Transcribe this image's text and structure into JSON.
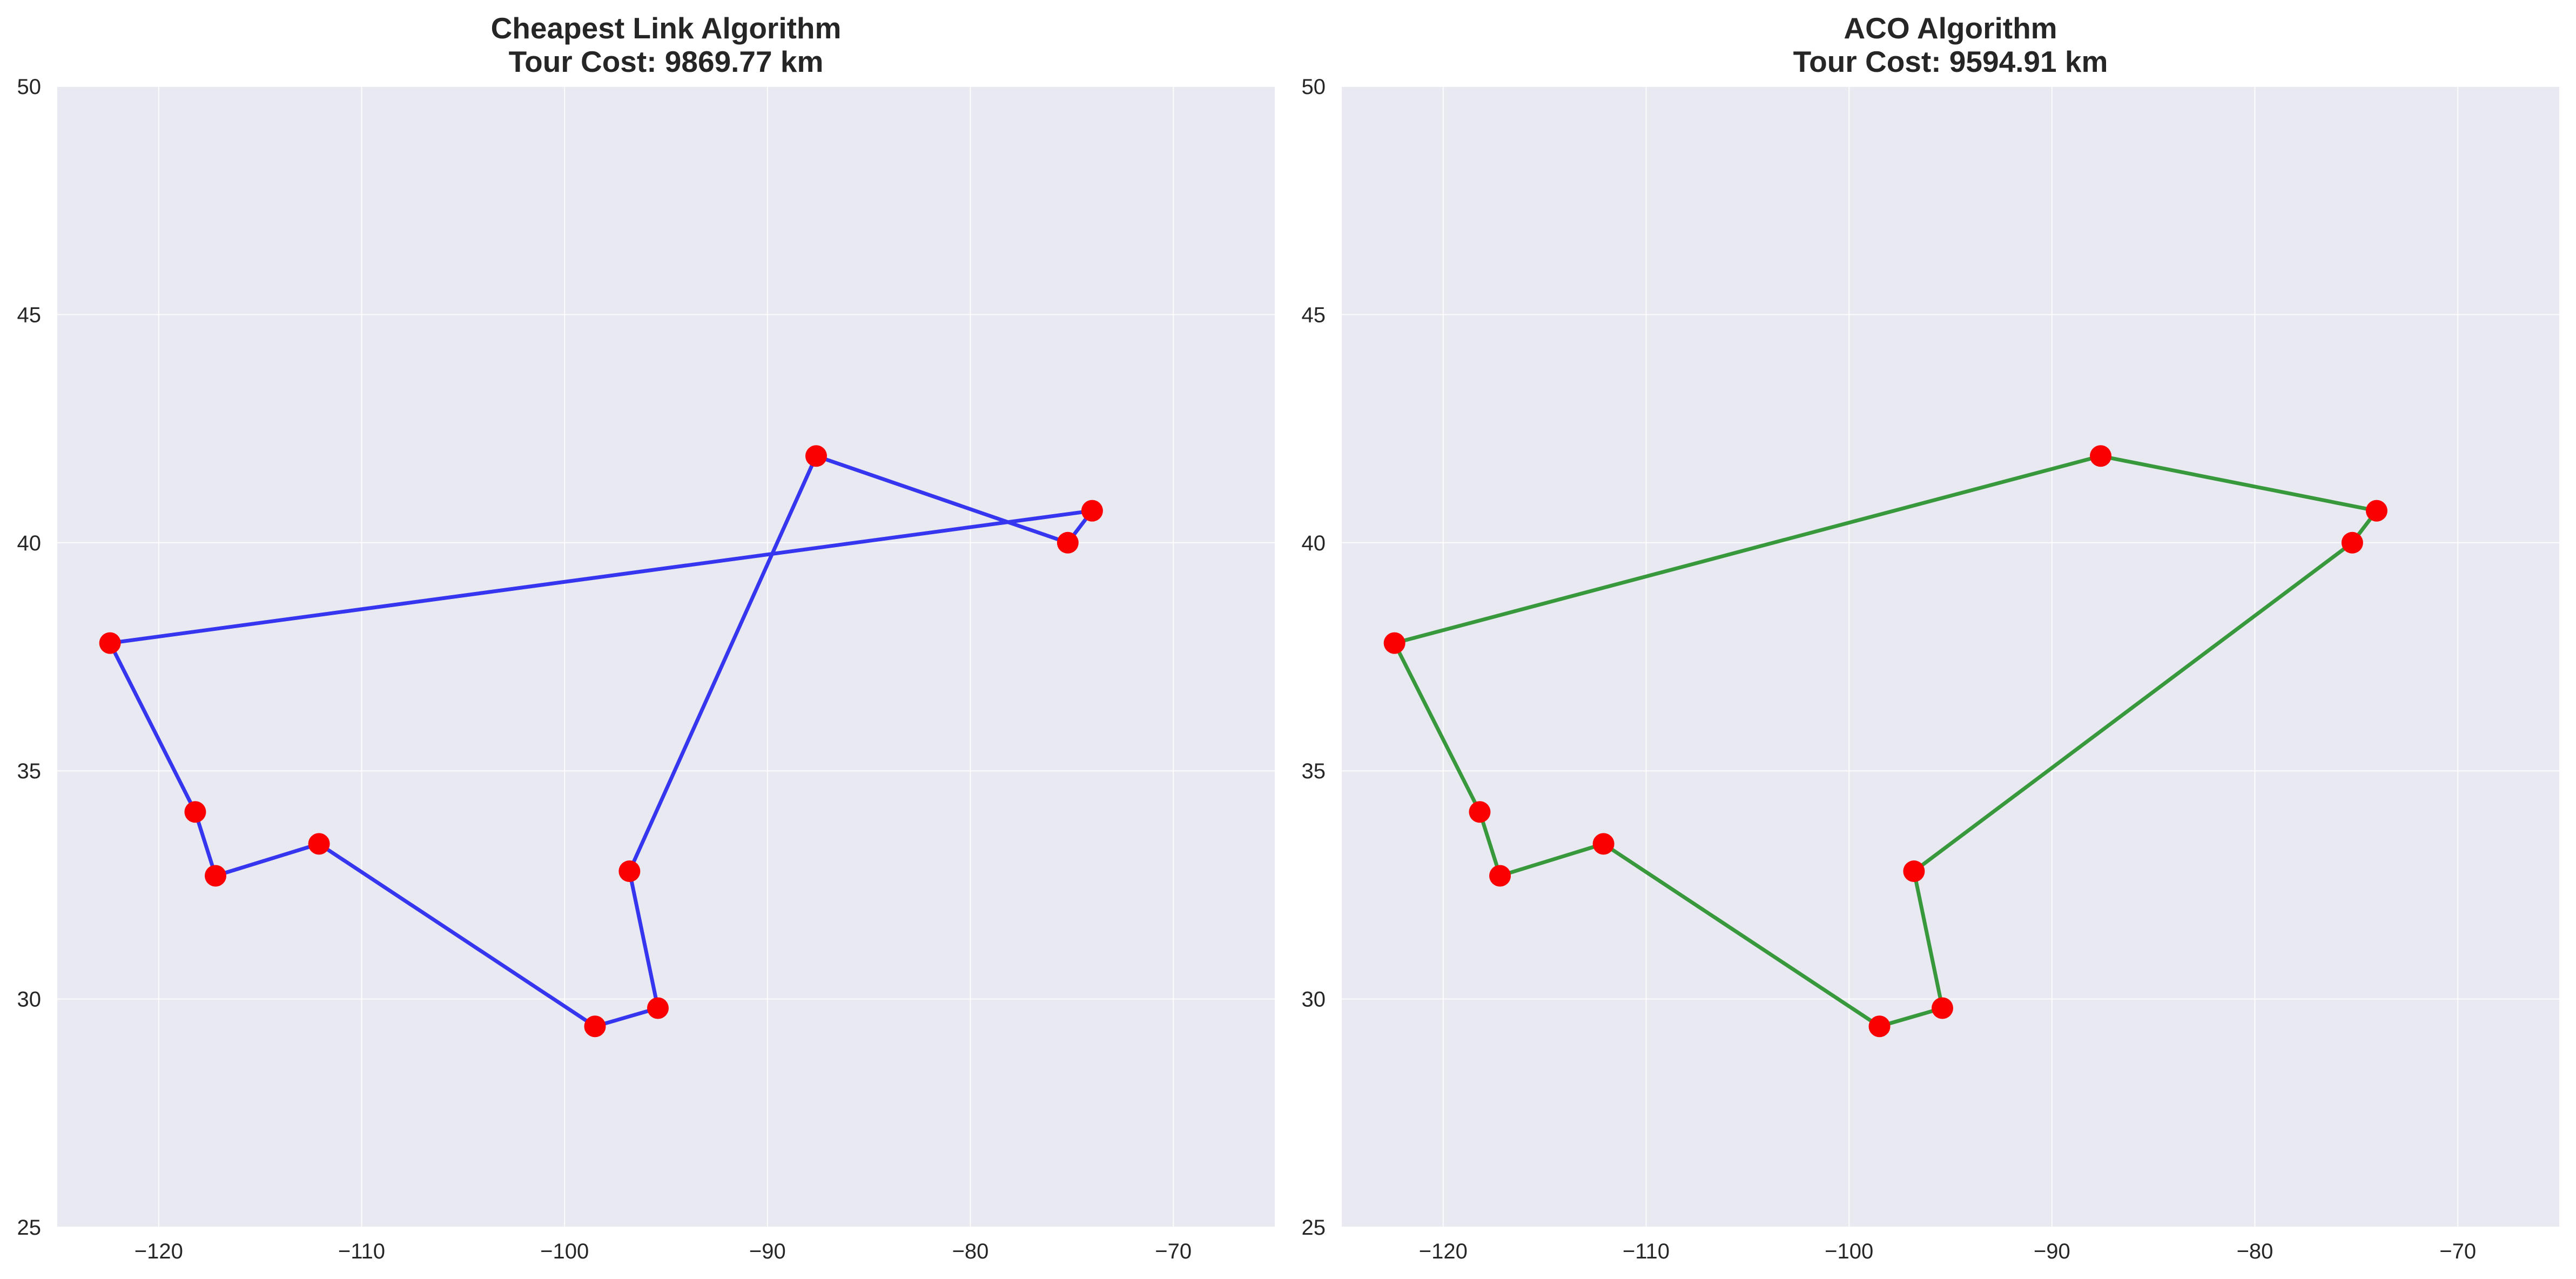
{
  "chart_data": [
    {
      "type": "line",
      "title_lines": [
        "Cheapest Link Algorithm",
        "Tour Cost: 9869.77 km"
      ],
      "xlabel": "",
      "ylabel": "",
      "xlim": [
        -125,
        -65
      ],
      "ylim": [
        25,
        50
      ],
      "xticks": [
        -120,
        -110,
        -100,
        -90,
        -80,
        -70
      ],
      "xtick_labels": [
        "−120",
        "−110",
        "−100",
        "−90",
        "−80",
        "−70"
      ],
      "yticks": [
        25,
        30,
        35,
        40,
        45,
        50
      ],
      "ytick_labels": [
        "25",
        "30",
        "35",
        "40",
        "45",
        "50"
      ],
      "grid": true,
      "background": "#e9e9f1",
      "series": [
        {
          "line_color": "#2c2cef",
          "point_color": "#fa0000",
          "x": [
            -74.0,
            -75.2,
            -87.6,
            -96.8,
            -95.4,
            -98.5,
            -112.1,
            -117.2,
            -118.2,
            -122.4,
            -74.0
          ],
          "y": [
            40.7,
            40.0,
            41.9,
            32.8,
            29.8,
            29.4,
            33.4,
            32.7,
            34.1,
            37.8,
            40.7
          ]
        }
      ]
    },
    {
      "type": "line",
      "title_lines": [
        "ACO Algorithm",
        "Tour Cost: 9594.91 km"
      ],
      "xlabel": "",
      "ylabel": "",
      "xlim": [
        -125,
        -65
      ],
      "ylim": [
        25,
        50
      ],
      "xticks": [
        -120,
        -110,
        -100,
        -90,
        -80,
        -70
      ],
      "xtick_labels": [
        "−120",
        "−110",
        "−100",
        "−90",
        "−80",
        "−70"
      ],
      "yticks": [
        25,
        30,
        35,
        40,
        45,
        50
      ],
      "ytick_labels": [
        "25",
        "30",
        "35",
        "40",
        "45",
        "50"
      ],
      "grid": true,
      "background": "#e9e9f1",
      "series": [
        {
          "line_color": "#2e9532",
          "point_color": "#fa0000",
          "x": [
            -122.4,
            -87.6,
            -74.0,
            -75.2,
            -96.8,
            -95.4,
            -98.5,
            -112.1,
            -117.2,
            -118.2,
            -122.4
          ],
          "y": [
            37.8,
            41.9,
            40.7,
            40.0,
            32.8,
            29.8,
            29.4,
            33.4,
            32.7,
            34.1,
            37.8
          ]
        }
      ]
    }
  ]
}
